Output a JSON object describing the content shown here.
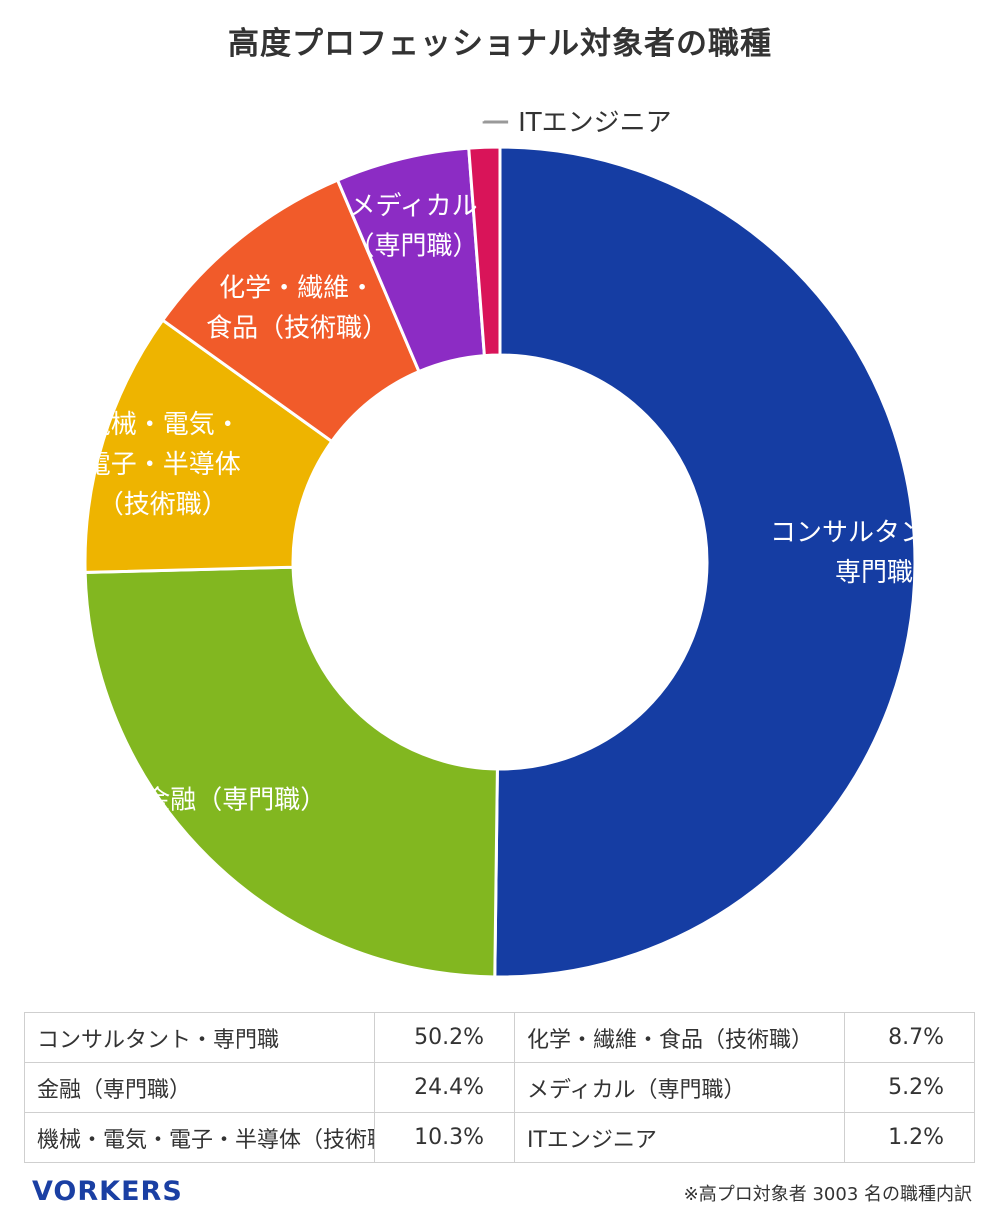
{
  "chart_data": {
    "type": "pie",
    "title": "高度プロフェッショナル対象者の職種",
    "donut": true,
    "slices": [
      {
        "label_lines": [
          "コンサルタント・",
          "専門職"
        ],
        "table_label": "コンサルタント・専門職",
        "value": 50.2,
        "value_text": "50.2%",
        "color": "#153da3",
        "text_color": "#ffffff"
      },
      {
        "label_lines": [
          "金融（専門職）"
        ],
        "table_label": "金融（専門職）",
        "value": 24.4,
        "value_text": "24.4%",
        "color": "#82b720",
        "text_color": "#ffffff"
      },
      {
        "label_lines": [
          "機械・電気・",
          "電子・半導体",
          "（技術職）"
        ],
        "table_label": "機械・電気・電子・半導体（技術職）",
        "value": 10.3,
        "value_text": "10.3%",
        "color": "#eeb400",
        "text_color": "#ffffff"
      },
      {
        "label_lines": [
          "化学・繊維・",
          "食品（技術職）"
        ],
        "table_label": "化学・繊維・食品（技術職）",
        "value": 8.7,
        "value_text": "8.7%",
        "color": "#f15b2a",
        "text_color": "#ffffff"
      },
      {
        "label_lines": [
          "メディカル",
          "（専門職）"
        ],
        "table_label": "メディカル（専門職）",
        "value": 5.2,
        "value_text": "5.2%",
        "color": "#8c2cc4",
        "text_color": "#ffffff"
      },
      {
        "label_lines": [
          "ITエンジニア"
        ],
        "table_label": "ITエンジニア",
        "value": 1.2,
        "value_text": "1.2%",
        "color": "#d91459",
        "text_color": "#333333"
      }
    ]
  },
  "footer": {
    "logo": "VORKERS",
    "note": "※高プロ対象者 3003 名の職種内訳"
  },
  "colors": {
    "leader_line": "#999999",
    "border": "#cfcfcf",
    "logo": "#1a3fa3"
  }
}
